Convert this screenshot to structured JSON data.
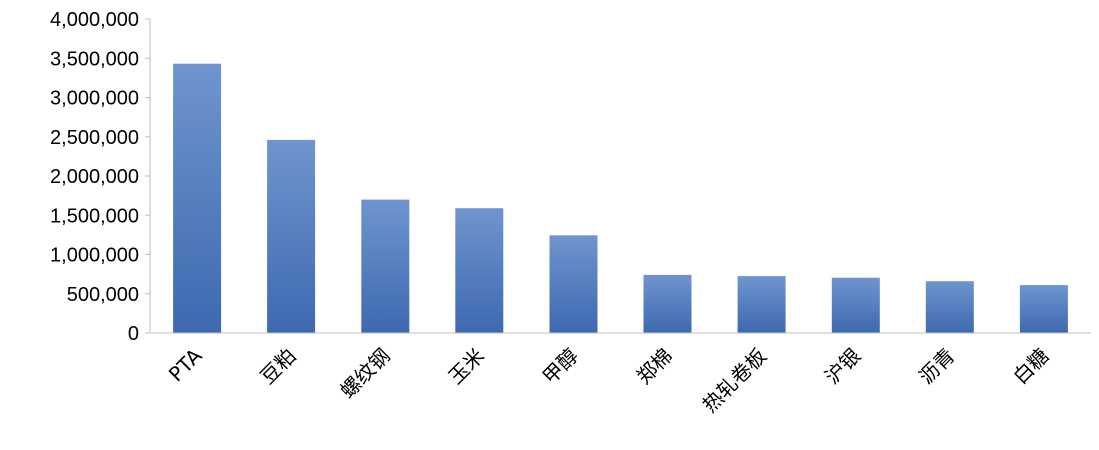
{
  "chart_data": {
    "type": "bar",
    "title": "",
    "xlabel": "",
    "ylabel": "",
    "categories": [
      "PTA",
      "豆粕",
      "螺纹钢",
      "玉米",
      "甲醇",
      "郑棉",
      "热轧卷板",
      "沪银",
      "沥青",
      "白糖"
    ],
    "values": [
      3430000,
      2460000,
      1700000,
      1590000,
      1245000,
      740000,
      725000,
      705000,
      660000,
      610000
    ],
    "ylim": [
      0,
      4000000
    ],
    "yticks": [
      0,
      500000,
      1000000,
      1500000,
      2000000,
      2500000,
      3000000,
      3500000,
      4000000
    ],
    "ytick_labels": [
      "0",
      "500,000",
      "1,000,000",
      "1,500,000",
      "2,000,000",
      "2,500,000",
      "3,000,000",
      "3,500,000",
      "4,000,000"
    ],
    "grid": false,
    "legend": "none",
    "colors": {
      "bar_top": "#6f95cf",
      "bar_bottom": "#3d69b0",
      "axis": "#bfbfbf",
      "text": "#000000"
    }
  }
}
